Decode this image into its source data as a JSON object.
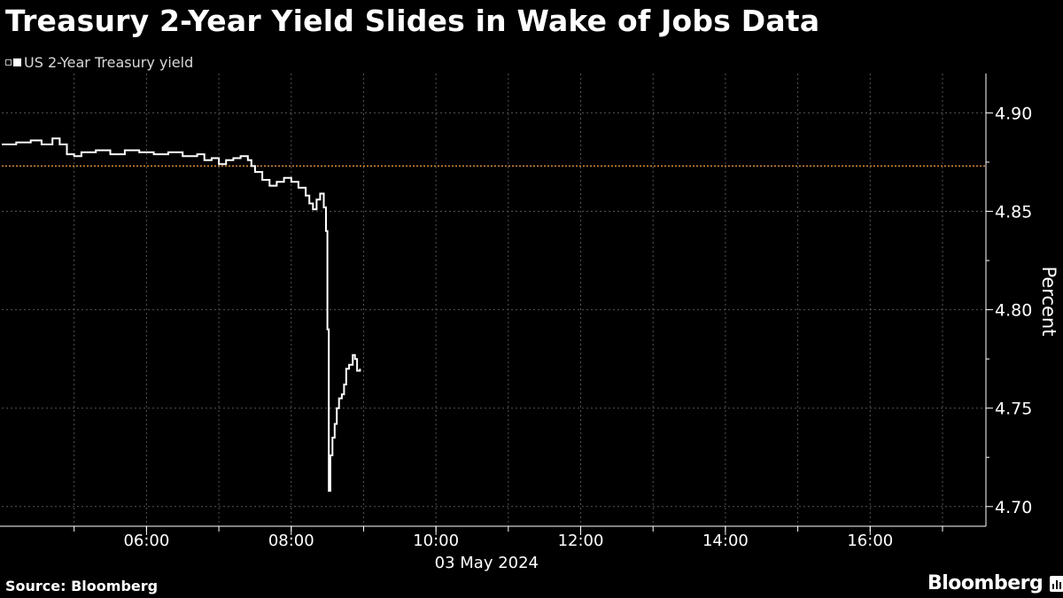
{
  "title": "Treasury 2-Year Yield Slides in Wake of Jobs Data",
  "legend": {
    "label": "US 2-Year Treasury yield"
  },
  "source": "Source: Bloomberg",
  "brand": "Bloomberg",
  "chart_data": {
    "type": "line",
    "title": "Treasury 2-Year Yield Slides in Wake of Jobs Data",
    "ylabel": "Percent",
    "xlabel": "03 May 2024",
    "x_range_hours": [
      4.0,
      17.6
    ],
    "xticks": [
      {
        "h": 6,
        "label": "06:00"
      },
      {
        "h": 8,
        "label": "08:00"
      },
      {
        "h": 10,
        "label": "10:00"
      },
      {
        "h": 12,
        "label": "12:00"
      },
      {
        "h": 14,
        "label": "14:00"
      },
      {
        "h": 16,
        "label": "16:00"
      }
    ],
    "ylim": [
      4.69,
      4.92
    ],
    "yticks": [
      4.7,
      4.75,
      4.8,
      4.85,
      4.9
    ],
    "reference_line": 4.873,
    "grid": true,
    "colors": {
      "line": "#ffffff",
      "reference": "#d98a3a",
      "grid": "#555555"
    },
    "series": [
      {
        "name": "US 2-Year Treasury yield",
        "points": [
          [
            4.0,
            4.884
          ],
          [
            4.2,
            4.885
          ],
          [
            4.4,
            4.886
          ],
          [
            4.55,
            4.884
          ],
          [
            4.7,
            4.887
          ],
          [
            4.8,
            4.884
          ],
          [
            4.9,
            4.879
          ],
          [
            5.0,
            4.878
          ],
          [
            5.1,
            4.88
          ],
          [
            5.3,
            4.881
          ],
          [
            5.5,
            4.879
          ],
          [
            5.7,
            4.881
          ],
          [
            5.9,
            4.88
          ],
          [
            6.1,
            4.879
          ],
          [
            6.3,
            4.88
          ],
          [
            6.5,
            4.878
          ],
          [
            6.7,
            4.879
          ],
          [
            6.8,
            4.876
          ],
          [
            6.9,
            4.877
          ],
          [
            7.0,
            4.874
          ],
          [
            7.1,
            4.876
          ],
          [
            7.2,
            4.877
          ],
          [
            7.3,
            4.878
          ],
          [
            7.4,
            4.876
          ],
          [
            7.45,
            4.873
          ],
          [
            7.5,
            4.87
          ],
          [
            7.6,
            4.866
          ],
          [
            7.7,
            4.863
          ],
          [
            7.8,
            4.865
          ],
          [
            7.9,
            4.867
          ],
          [
            8.0,
            4.865
          ],
          [
            8.1,
            4.862
          ],
          [
            8.2,
            4.858
          ],
          [
            8.25,
            4.854
          ],
          [
            8.3,
            4.851
          ],
          [
            8.35,
            4.856
          ],
          [
            8.4,
            4.859
          ],
          [
            8.45,
            4.852
          ],
          [
            8.48,
            4.84
          ],
          [
            8.5,
            4.79
          ],
          [
            8.52,
            4.708
          ],
          [
            8.54,
            4.726
          ],
          [
            8.57,
            4.735
          ],
          [
            8.6,
            4.742
          ],
          [
            8.63,
            4.75
          ],
          [
            8.66,
            4.755
          ],
          [
            8.7,
            4.757
          ],
          [
            8.73,
            4.762
          ],
          [
            8.76,
            4.77
          ],
          [
            8.8,
            4.772
          ],
          [
            8.85,
            4.777
          ],
          [
            8.88,
            4.775
          ],
          [
            8.91,
            4.769
          ],
          [
            8.95,
            4.77
          ]
        ]
      }
    ]
  }
}
